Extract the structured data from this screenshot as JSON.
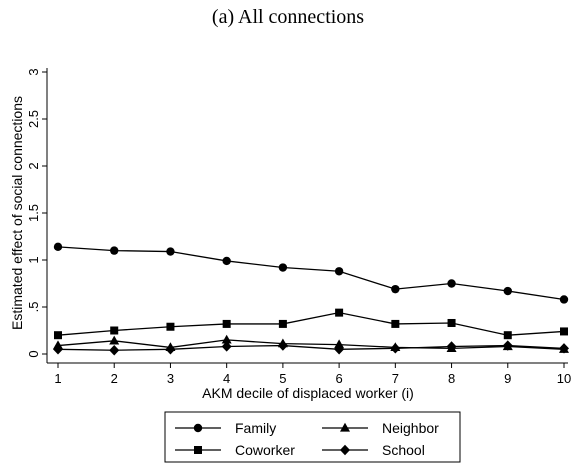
{
  "caption": "(a) All connections",
  "chart_data": {
    "type": "line",
    "title": "",
    "xlabel": "AKM decile of displaced worker (i)",
    "ylabel": "Estimated effect of social connections",
    "x": [
      1,
      2,
      3,
      4,
      5,
      6,
      7,
      8,
      9,
      10
    ],
    "xlim": [
      1,
      10
    ],
    "ylim": [
      0,
      3
    ],
    "xticks": [
      "1",
      "2",
      "3",
      "4",
      "5",
      "6",
      "7",
      "8",
      "9",
      "10"
    ],
    "yticks": [
      0,
      0.5,
      1,
      1.5,
      2,
      2.5,
      3
    ],
    "ytick_labels": [
      "0",
      ".5",
      "1",
      "1.5",
      "2",
      "2.5",
      "3"
    ],
    "grid": false,
    "legend_position": "bottom",
    "series": [
      {
        "name": "Family",
        "marker": "circle",
        "values": [
          1.14,
          1.1,
          1.09,
          0.99,
          0.92,
          0.88,
          0.69,
          0.75,
          0.67,
          0.58
        ]
      },
      {
        "name": "Neighbor",
        "marker": "triangle",
        "values": [
          0.09,
          0.14,
          0.07,
          0.15,
          0.11,
          0.1,
          0.07,
          0.06,
          0.08,
          0.05
        ]
      },
      {
        "name": "Coworker",
        "marker": "square",
        "values": [
          0.2,
          0.25,
          0.29,
          0.32,
          0.32,
          0.44,
          0.32,
          0.33,
          0.2,
          0.24
        ]
      },
      {
        "name": "School",
        "marker": "diamond",
        "values": [
          0.05,
          0.04,
          0.05,
          0.08,
          0.09,
          0.05,
          0.06,
          0.08,
          0.09,
          0.06
        ]
      }
    ]
  }
}
